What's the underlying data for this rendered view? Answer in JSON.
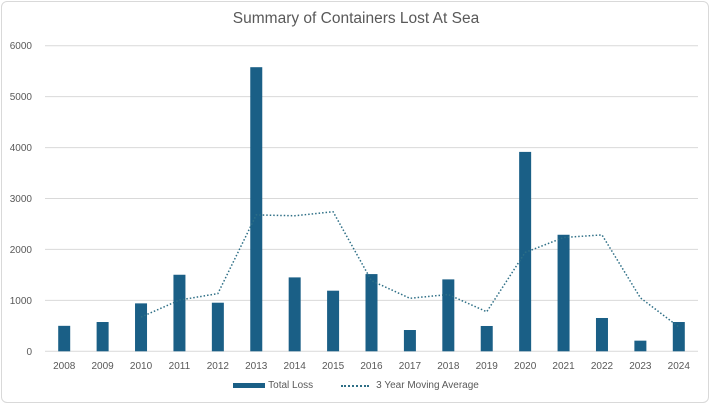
{
  "chart_data": {
    "type": "bar",
    "title": "Summary of Containers Lost At Sea",
    "xlabel": "",
    "ylabel": "",
    "ylim": [
      0,
      6000
    ],
    "yticks": [
      0,
      1000,
      2000,
      3000,
      4000,
      5000,
      6000
    ],
    "grid": true,
    "legend_position": "bottom",
    "categories": [
      "2008",
      "2009",
      "2010",
      "2011",
      "2012",
      "2013",
      "2014",
      "2015",
      "2016",
      "2017",
      "2018",
      "2019",
      "2020",
      "2021",
      "2022",
      "2023",
      "2024"
    ],
    "series": [
      {
        "name": "Total Loss",
        "type": "bar",
        "color": "#1a5f86",
        "values": [
          500,
          575,
          941,
          1503,
          954,
          5578,
          1451,
          1190,
          1516,
          418,
          1412,
          497,
          3915,
          2288,
          654,
          209,
          575
        ]
      },
      {
        "name": "3 Year Moving Average",
        "type": "line",
        "style": "dotted",
        "color": "#2e6f86",
        "values": [
          null,
          null,
          672,
          1006,
          1133,
          2678,
          2661,
          2740,
          1386,
          1041,
          1115,
          776,
          1941,
          2233,
          2286,
          1050,
          479
        ]
      }
    ]
  }
}
